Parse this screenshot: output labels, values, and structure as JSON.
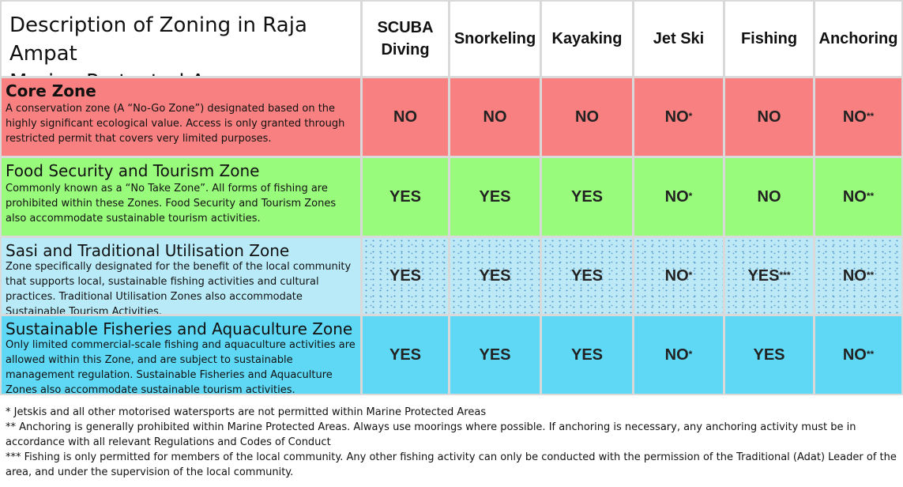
{
  "title_line1": "Description of Zoning in Raja Ampat",
  "title_line2": "Marine Protected Areas",
  "columns": [
    {
      "line1": "SCUBA",
      "line2": "Diving"
    },
    {
      "line1": "Snorkeling",
      "line2": ""
    },
    {
      "line1": "Kayaking",
      "line2": ""
    },
    {
      "line1": "Jet Ski",
      "line2": ""
    },
    {
      "line1": "Fishing",
      "line2": ""
    },
    {
      "line1": "Anchoring",
      "line2": ""
    }
  ],
  "zones": [
    {
      "name": "Core Zone",
      "description": "A conservation zone (A “No-Go Zone”) designated based on the highly significant ecological value. Access is only granted through restricted permit that covers very limited purposes.",
      "values": [
        {
          "text": "NO",
          "mark": ""
        },
        {
          "text": "NO",
          "mark": ""
        },
        {
          "text": "NO",
          "mark": ""
        },
        {
          "text": "NO",
          "mark": "*"
        },
        {
          "text": "NO",
          "mark": ""
        },
        {
          "text": "NO",
          "mark": "**"
        }
      ]
    },
    {
      "name": "Food Security and Tourism Zone",
      "description": "Commonly known as a “No Take Zone”.  All forms of fishing are prohibited within these Zones.  Food Security and Tourism Zones also accommodate sustainable tourism activities.",
      "values": [
        {
          "text": "YES",
          "mark": ""
        },
        {
          "text": "YES",
          "mark": ""
        },
        {
          "text": "YES",
          "mark": ""
        },
        {
          "text": "NO",
          "mark": "*"
        },
        {
          "text": "NO",
          "mark": ""
        },
        {
          "text": "NO",
          "mark": "**"
        }
      ]
    },
    {
      "name": "Sasi and Traditional Utilisation Zone",
      "description": "Zone specifically designated for the benefit of the local community that supports local, sustainable fishing activities and cultural practices.  Traditional Utilisation Zones also accommodate Sustainable Tourism Activities.",
      "values": [
        {
          "text": "YES",
          "mark": ""
        },
        {
          "text": "YES",
          "mark": ""
        },
        {
          "text": "YES",
          "mark": ""
        },
        {
          "text": "NO",
          "mark": "*"
        },
        {
          "text": "YES",
          "mark": "***"
        },
        {
          "text": "NO",
          "mark": "**"
        }
      ]
    },
    {
      "name": "Sustainable Fisheries and Aquaculture Zone",
      "description": "Only limited commercial-scale fishing and aquaculture activities are allowed within this Zone, and are subject to sustainable management regulation. Sustainable Fisheries and Aquaculture Zones also accommodate sustainable tourism activities.",
      "values": [
        {
          "text": "YES",
          "mark": ""
        },
        {
          "text": "YES",
          "mark": ""
        },
        {
          "text": "YES",
          "mark": ""
        },
        {
          "text": "NO",
          "mark": "*"
        },
        {
          "text": "YES",
          "mark": ""
        },
        {
          "text": "NO",
          "mark": "**"
        }
      ]
    }
  ],
  "footnotes": [
    "* Jetskis and all other motorised watersports are not permitted within Marine Protected Areas",
    "** Anchoring is generally prohibited within Marine Protected Areas. Always use moorings where possible. If anchoring is necessary, any anchoring activity must be in accordance with all relevant Regulations and Codes of Conduct",
    "*** Fishing is only permitted for members of the local community.  Any other fishing activity can only be conducted with the permission of the Traditional (Adat) Leader of the area, and under the supervision of the local community."
  ]
}
